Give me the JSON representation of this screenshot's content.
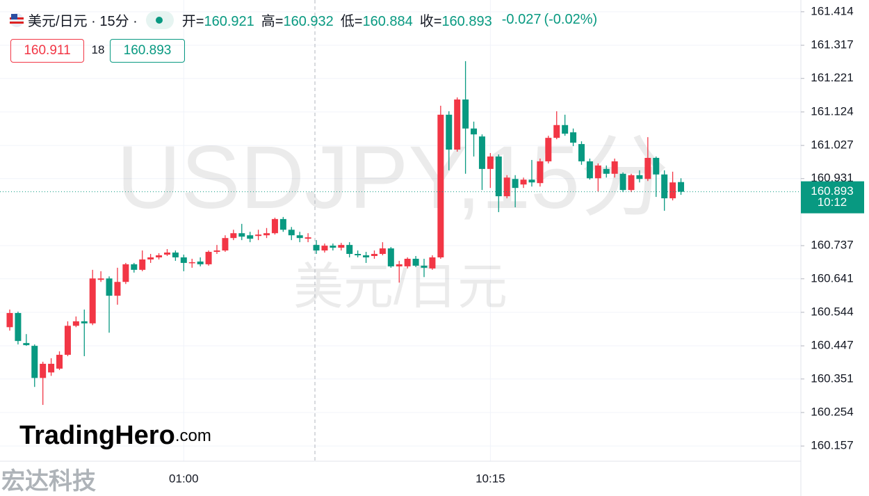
{
  "chart_data": {
    "type": "candlestick",
    "symbol_line": "美元/日元 · 15分 ·",
    "ohlc_labels": [
      "开=",
      "高=",
      "低=",
      "收="
    ],
    "change": -0.027,
    "change_pct": {
      "value": -0.02,
      "label": "(-0.02%)"
    },
    "bid": 160.911,
    "spread": 18,
    "ask": 160.893,
    "countdown": "10:12",
    "watermark": "USDJPY,15分",
    "watermark_sub": "美元/日元",
    "logo": "TradingHero",
    "logo_suffix": ".com",
    "corner_mark": "宏达科技",
    "up_color": "#f23645",
    "down_color": "#089981",
    "categories": [
      null,
      null,
      null,
      null,
      null,
      null,
      null,
      null,
      null,
      null,
      null,
      null,
      null,
      null,
      null,
      null,
      null,
      null,
      null,
      null,
      null,
      "01:00",
      null,
      null,
      null,
      null,
      null,
      null,
      null,
      null,
      null,
      null,
      null,
      null,
      null,
      null,
      null,
      null,
      null,
      null,
      null,
      null,
      null,
      null,
      null,
      null,
      null,
      null,
      null,
      null,
      null,
      null,
      null,
      null,
      null,
      null,
      null,
      null,
      "10:15",
      null,
      null,
      null,
      null,
      null,
      null,
      null,
      null,
      null,
      null,
      null,
      null,
      null,
      null,
      null,
      null,
      null,
      null,
      null,
      null,
      null,
      null,
      null
    ],
    "open": [
      160.501,
      160.542,
      160.455,
      160.447,
      160.354,
      160.37,
      160.381,
      160.421,
      160.505,
      160.518,
      160.512,
      160.638,
      160.642,
      160.592,
      160.632,
      160.683,
      160.667,
      160.697,
      160.703,
      160.711,
      160.717,
      160.703,
      160.687,
      160.691,
      160.683,
      160.719,
      160.723,
      160.759,
      160.773,
      160.767,
      160.765,
      160.767,
      160.773,
      160.814,
      160.783,
      160.767,
      160.757,
      160.739,
      160.723,
      160.737,
      160.731,
      160.739,
      160.713,
      160.709,
      160.707,
      160.713,
      160.729,
      160.677,
      160.677,
      160.699,
      160.679,
      160.671,
      160.703,
      161.116,
      161.015,
      161.16,
      161.076,
      161.053,
      160.959,
      160.995,
      160.88,
      160.93,
      160.914,
      160.928,
      160.918,
      160.981,
      161.049,
      161.086,
      161.065,
      161.031,
      160.981,
      160.932,
      160.959,
      160.945,
      160.945,
      160.898,
      160.941,
      160.93,
      160.991,
      160.943,
      160.874,
      160.921
    ],
    "high": [
      160.552,
      160.546,
      160.481,
      160.451,
      160.401,
      160.411,
      160.431,
      160.518,
      160.532,
      160.552,
      160.667,
      160.663,
      160.648,
      160.673,
      160.687,
      160.687,
      160.723,
      160.713,
      160.715,
      160.727,
      160.723,
      160.711,
      160.699,
      160.703,
      160.723,
      160.739,
      160.767,
      160.783,
      160.8,
      160.777,
      160.783,
      160.788,
      160.818,
      160.82,
      160.791,
      160.777,
      160.773,
      160.753,
      160.743,
      160.743,
      160.745,
      160.747,
      160.723,
      160.719,
      160.723,
      160.747,
      160.733,
      160.693,
      160.703,
      160.707,
      160.699,
      160.709,
      161.142,
      161.126,
      161.166,
      161.271,
      161.096,
      161.059,
      161.005,
      161.001,
      160.941,
      160.941,
      160.934,
      160.985,
      160.989,
      161.055,
      161.126,
      161.116,
      161.076,
      161.039,
      160.989,
      160.975,
      160.969,
      160.989,
      160.949,
      160.945,
      160.955,
      161.051,
      160.995,
      160.955,
      160.951,
      160.932
    ],
    "low": [
      160.491,
      160.451,
      160.447,
      160.328,
      160.276,
      160.36,
      160.377,
      160.417,
      160.501,
      160.417,
      160.507,
      160.632,
      160.485,
      160.566,
      160.626,
      160.659,
      160.663,
      160.687,
      160.697,
      160.707,
      160.693,
      160.663,
      160.673,
      160.677,
      160.679,
      160.713,
      160.719,
      160.753,
      160.753,
      160.747,
      160.753,
      160.759,
      160.769,
      160.777,
      160.753,
      160.747,
      160.747,
      160.713,
      160.717,
      160.723,
      160.723,
      160.703,
      160.703,
      160.687,
      160.699,
      160.709,
      160.673,
      160.63,
      160.671,
      160.675,
      160.646,
      160.667,
      160.699,
      160.955,
      161.009,
      160.945,
      160.995,
      160.898,
      160.904,
      160.834,
      160.874,
      160.848,
      160.904,
      160.908,
      160.908,
      160.975,
      161.045,
      161.055,
      161.025,
      160.971,
      160.928,
      160.894,
      160.934,
      160.934,
      160.892,
      160.892,
      160.92,
      160.924,
      160.878,
      160.838,
      160.868,
      160.884
    ],
    "close": [
      160.542,
      160.461,
      160.449,
      160.354,
      160.395,
      160.395,
      160.421,
      160.505,
      160.518,
      160.512,
      160.642,
      160.642,
      160.592,
      160.632,
      160.683,
      160.667,
      160.697,
      160.703,
      160.709,
      160.717,
      160.703,
      160.687,
      160.689,
      160.683,
      160.719,
      160.723,
      160.759,
      160.773,
      160.763,
      160.757,
      160.769,
      160.773,
      160.814,
      160.783,
      160.767,
      160.759,
      160.761,
      160.723,
      160.737,
      160.731,
      160.739,
      160.713,
      160.709,
      160.703,
      160.713,
      160.729,
      160.677,
      160.683,
      160.699,
      160.679,
      160.673,
      160.703,
      161.116,
      161.015,
      161.16,
      161.076,
      161.059,
      160.959,
      160.995,
      160.88,
      160.934,
      160.904,
      160.928,
      160.92,
      160.981,
      161.049,
      161.086,
      161.061,
      161.035,
      160.981,
      160.932,
      160.969,
      160.945,
      160.981,
      160.898,
      160.941,
      160.93,
      160.991,
      160.943,
      160.874,
      160.92,
      160.893
    ],
    "ylim": [
      160.113,
      161.448
    ],
    "yticks": [
      161.414,
      161.317,
      161.221,
      161.124,
      161.027,
      160.931,
      160.737,
      160.641,
      160.544,
      160.447,
      160.351,
      160.254,
      160.157
    ],
    "grid": true
  }
}
